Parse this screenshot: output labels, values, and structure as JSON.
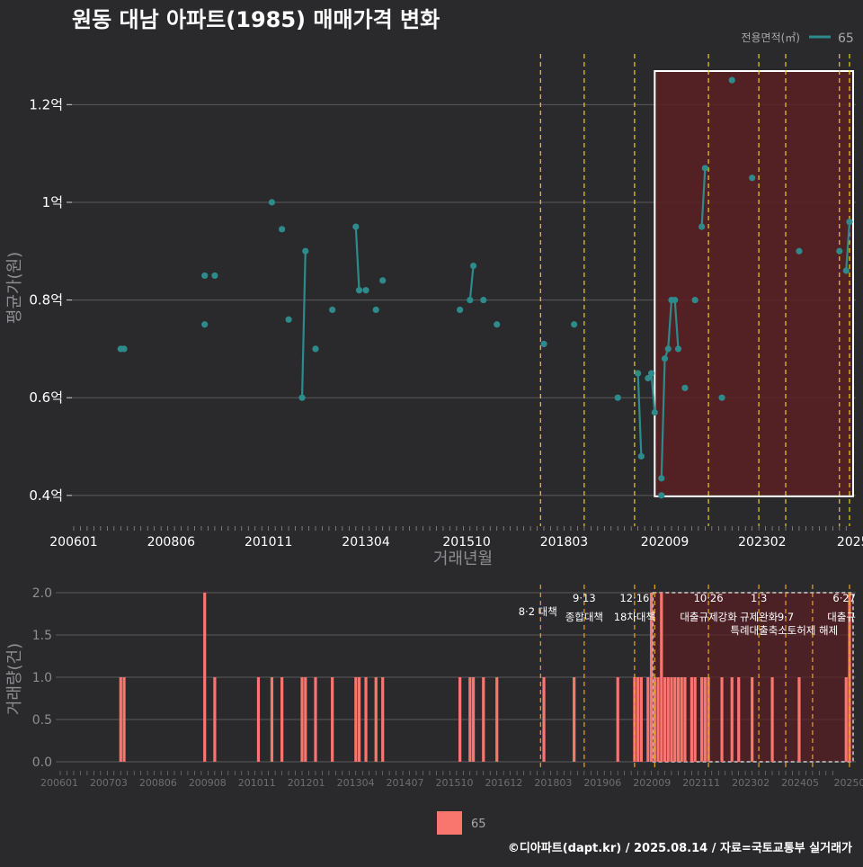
{
  "title": "원동 대남 아파트(1985) 매매가격 변화",
  "legend_title": "전용면적(㎡)",
  "legend_label": "65",
  "bottom_legend_label": "65",
  "footer": "©디아파트(dapt.kr) / 2025.08.14 / 자료=국토교통부 실거래가",
  "colors": {
    "background": "#2a2a2c",
    "line": "#2e8b8b",
    "bar": "#f8766d",
    "highlight_fill": "#5a1e22",
    "policy_line": "#e8d21c",
    "policy_line_bottom": "#e8a81c",
    "grid": "#5a5a5e"
  },
  "chart_data": [
    {
      "type": "line",
      "ylabel": "평균가(원)",
      "xlabel": "거래년월",
      "ylim": [
        0.35,
        1.3
      ],
      "y_ticks": [
        {
          "value": 0.4,
          "label": "0.4억"
        },
        {
          "value": 0.6,
          "label": "0.6억"
        },
        {
          "value": 0.8,
          "label": "0.8억"
        },
        {
          "value": 1.0,
          "label": "1억"
        },
        {
          "value": 1.2,
          "label": "1.2억"
        }
      ],
      "x_ticks": [
        "200601",
        "200806",
        "201011",
        "201304",
        "201510",
        "201803",
        "202009",
        "202302",
        "2025"
      ],
      "series": [
        {
          "name": "65",
          "points": [
            [
              "2007-03",
              0.7
            ],
            [
              "2007-04",
              0.7
            ],
            [
              "2009-04",
              0.85
            ],
            [
              "2009-04",
              0.75
            ],
            [
              "2009-07",
              0.85
            ],
            [
              "2010-12",
              1.0
            ],
            [
              "2011-03",
              0.945
            ],
            [
              "2011-05",
              0.76
            ],
            [
              "2011-09",
              0.6
            ],
            [
              "2011-10",
              0.9
            ],
            [
              "2012-01",
              0.7
            ],
            [
              "2012-06",
              0.78
            ],
            [
              "2013-01",
              0.95
            ],
            [
              "2013-02",
              0.82
            ],
            [
              "2013-04",
              0.82
            ],
            [
              "2013-07",
              0.78
            ],
            [
              "2013-09",
              0.84
            ],
            [
              "2015-08",
              0.78
            ],
            [
              "2015-11",
              0.8
            ],
            [
              "2015-12",
              0.87
            ],
            [
              "2016-03",
              0.8
            ],
            [
              "2016-07",
              0.75
            ],
            [
              "2017-09",
              0.71
            ],
            [
              "2018-06",
              0.75
            ],
            [
              "2019-07",
              0.6
            ],
            [
              "2020-01",
              0.65
            ],
            [
              "2020-02",
              0.48
            ],
            [
              "2020-04",
              0.64
            ],
            [
              "2020-05",
              0.65
            ],
            [
              "2020-06",
              0.57
            ],
            [
              "2020-08",
              0.4
            ],
            [
              "2020-08",
              0.435
            ],
            [
              "2020-09",
              0.68
            ],
            [
              "2020-10",
              0.7
            ],
            [
              "2020-11",
              0.8
            ],
            [
              "2020-12",
              0.8
            ],
            [
              "2021-01",
              0.7
            ],
            [
              "2021-03",
              0.62
            ],
            [
              "2021-06",
              0.8
            ],
            [
              "2021-08",
              0.95
            ],
            [
              "2021-09",
              1.07
            ],
            [
              "2022-02",
              0.6
            ],
            [
              "2022-05",
              1.25
            ],
            [
              "2022-11",
              1.05
            ],
            [
              "2024-01",
              0.9
            ],
            [
              "2025-01",
              0.9
            ],
            [
              "2025-03",
              0.86
            ],
            [
              "2025-04",
              0.96
            ]
          ],
          "connected_runs": [
            [
              [
                "2011-09",
                0.6
              ],
              [
                "2011-10",
                0.9
              ]
            ],
            [
              [
                "2013-01",
                0.95
              ],
              [
                "2013-02",
                0.82
              ]
            ],
            [
              [
                "2015-11",
                0.8
              ],
              [
                "2015-12",
                0.87
              ]
            ],
            [
              [
                "2020-01",
                0.65
              ],
              [
                "2020-02",
                0.48
              ]
            ],
            [
              [
                "2020-04",
                0.64
              ],
              [
                "2020-05",
                0.65
              ],
              [
                "2020-06",
                0.57
              ]
            ],
            [
              [
                "2020-08",
                0.435
              ],
              [
                "2020-09",
                0.68
              ],
              [
                "2020-10",
                0.7
              ],
              [
                "2020-11",
                0.8
              ],
              [
                "2020-12",
                0.8
              ],
              [
                "2021-01",
                0.7
              ]
            ],
            [
              [
                "2021-08",
                0.95
              ],
              [
                "2021-09",
                1.07
              ]
            ],
            [
              [
                "2025-03",
                0.86
              ],
              [
                "2025-04",
                0.96
              ]
            ]
          ]
        }
      ],
      "highlight_range": [
        "2020-06",
        "2025-04"
      ],
      "policy_dates": [
        "2017-08",
        "2018-09",
        "2019-12",
        "2021-10",
        "2023-01",
        "2023-09",
        "2025-01",
        "2025-04"
      ],
      "grid": true,
      "legend": "top-right"
    },
    {
      "type": "bar",
      "ylabel": "거래량(건)",
      "ylim": [
        0,
        2
      ],
      "y_ticks": [
        "0.0",
        "0.5",
        "1.0",
        "1.5",
        "2.0"
      ],
      "x_ticks": [
        "200601",
        "200703",
        "200806",
        "200908",
        "201011",
        "201201",
        "201304",
        "201407",
        "201510",
        "201612",
        "201803",
        "201906",
        "202009",
        "202111",
        "202302",
        "202405",
        "20250"
      ],
      "series": [
        {
          "name": "65",
          "values": [
            [
              "2007-03",
              1
            ],
            [
              "2007-04",
              1
            ],
            [
              "2009-04",
              2
            ],
            [
              "2009-07",
              1
            ],
            [
              "2010-08",
              1
            ],
            [
              "2010-12",
              1
            ],
            [
              "2011-03",
              1
            ],
            [
              "2011-09",
              1
            ],
            [
              "2011-10",
              1
            ],
            [
              "2012-01",
              1
            ],
            [
              "2012-06",
              1
            ],
            [
              "2013-01",
              1
            ],
            [
              "2013-02",
              1
            ],
            [
              "2013-04",
              1
            ],
            [
              "2013-07",
              1
            ],
            [
              "2013-09",
              1
            ],
            [
              "2015-08",
              1
            ],
            [
              "2015-11",
              1
            ],
            [
              "2015-12",
              1
            ],
            [
              "2016-03",
              1
            ],
            [
              "2016-07",
              1
            ],
            [
              "2017-09",
              1
            ],
            [
              "2018-06",
              1
            ],
            [
              "2019-07",
              1
            ],
            [
              "2019-12",
              1
            ],
            [
              "2020-01",
              1
            ],
            [
              "2020-02",
              1
            ],
            [
              "2020-04",
              1
            ],
            [
              "2020-05",
              2
            ],
            [
              "2020-06",
              1
            ],
            [
              "2020-07",
              1
            ],
            [
              "2020-08",
              2
            ],
            [
              "2020-09",
              1
            ],
            [
              "2020-10",
              1
            ],
            [
              "2020-11",
              1
            ],
            [
              "2020-12",
              1
            ],
            [
              "2021-01",
              1
            ],
            [
              "2021-02",
              1
            ],
            [
              "2021-03",
              1
            ],
            [
              "2021-05",
              1
            ],
            [
              "2021-06",
              1
            ],
            [
              "2021-08",
              1
            ],
            [
              "2021-09",
              1
            ],
            [
              "2021-10",
              1
            ],
            [
              "2022-02",
              1
            ],
            [
              "2022-05",
              1
            ],
            [
              "2022-07",
              1
            ],
            [
              "2022-11",
              1
            ],
            [
              "2023-05",
              1
            ],
            [
              "2024-01",
              1
            ],
            [
              "2025-03",
              1
            ],
            [
              "2025-04",
              2
            ]
          ]
        }
      ],
      "highlight_range": [
        "2020-06",
        "2025-04"
      ],
      "policy_annotations": [
        {
          "date": "2017-08",
          "text": "8·2 대책",
          "text2": ""
        },
        {
          "date": "2018-09",
          "text": "9·13",
          "text2": "종합대책"
        },
        {
          "date": "2019-12",
          "text": "12·16",
          "text2": "18차대책"
        },
        {
          "date": "2020-06",
          "text": "",
          "text2": ""
        },
        {
          "date": "2021-10",
          "text": "10·26",
          "text2": "대출규제강화"
        },
        {
          "date": "2023-01",
          "text": "1·3",
          "text2": "규제완화"
        },
        {
          "date": "2023-09",
          "text": "",
          "text2": "9·7"
        },
        {
          "date": "2023-01",
          "text": "",
          "text2": "",
          "text3": "특례대출축소"
        },
        {
          "date": "2024-05",
          "text": "",
          "text2": "",
          "text3": "토허제 해제"
        },
        {
          "date": "2025-04",
          "text": "6·27",
          "text2": "대출규"
        }
      ],
      "grid": true,
      "legend": "bottom"
    }
  ]
}
